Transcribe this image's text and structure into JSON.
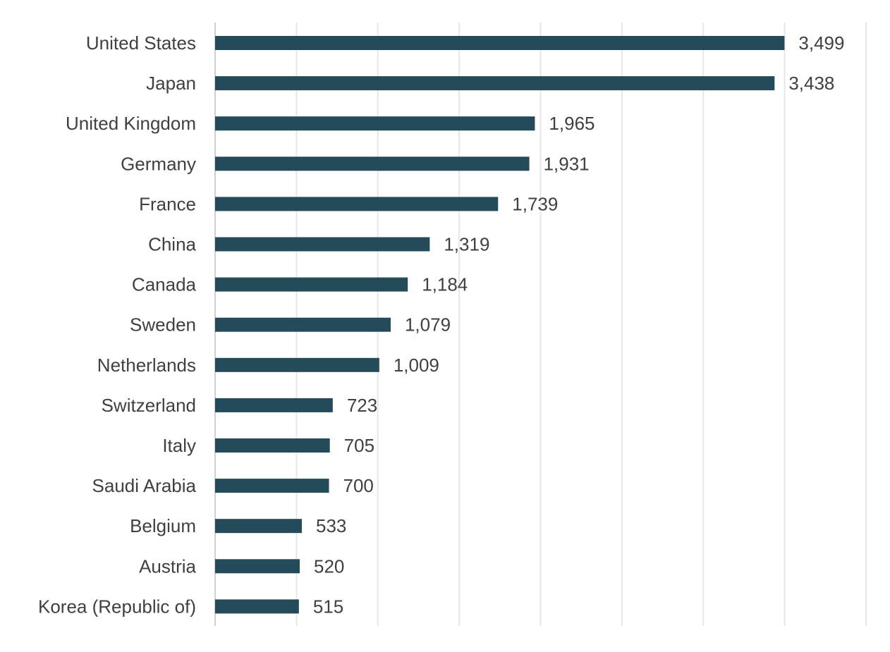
{
  "chart_data": {
    "type": "bar",
    "orientation": "horizontal",
    "title": "",
    "xlabel": "",
    "ylabel": "",
    "categories": [
      "United States",
      "Japan",
      "United Kingdom",
      "Germany",
      "France",
      "China",
      "Canada",
      "Sweden",
      "Netherlands",
      "Switzerland",
      "Italy",
      "Saudi Arabia",
      "Belgium",
      "Austria",
      "Korea (Republic of)"
    ],
    "values": [
      3499,
      3438,
      1965,
      1931,
      1739,
      1319,
      1184,
      1079,
      1009,
      723,
      705,
      700,
      533,
      520,
      515
    ],
    "value_labels": [
      "3,499",
      "3,438",
      "1,965",
      "1,931",
      "1,739",
      "1,319",
      "1,184",
      "1,079",
      "1,009",
      "723",
      "705",
      "700",
      "533",
      "520",
      "515"
    ],
    "xlim": [
      0,
      4000
    ],
    "grid": true,
    "grid_step": 500,
    "tick_labels_shown": false,
    "legend": "none",
    "bar_color": "#234b5a",
    "grid_color": "#e7e7e7",
    "axis_color": "#d0d0d0",
    "label_color": "#404040"
  }
}
